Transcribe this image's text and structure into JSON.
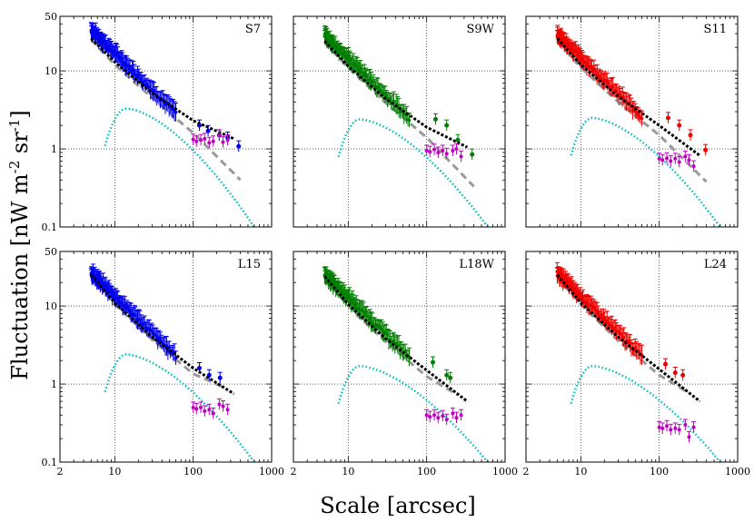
{
  "chart_data": {
    "type": "scatter",
    "xlabel": "Scale [arcsec]",
    "ylabel": "Fluctuation [nW m$^{-2}$ sr$^{-1}$]",
    "xscale": "log",
    "yscale": "log",
    "xlim": [
      2,
      1000
    ],
    "ylim": [
      0.1,
      50
    ],
    "x_tick_labels": [
      {
        "value": 2,
        "label": "2"
      },
      {
        "value": 10,
        "label": "10"
      },
      {
        "value": 100,
        "label": "100"
      },
      {
        "value": 1000,
        "label": "1000"
      }
    ],
    "y_tick_labels": [
      {
        "value": 0.1,
        "label": "0.1"
      },
      {
        "value": 1,
        "label": "1"
      },
      {
        "value": 10,
        "label": "10"
      },
      {
        "value": 50,
        "label": "50"
      }
    ],
    "grid": true,
    "panels": [
      {
        "label": "S7",
        "color": "#0000ee",
        "blue_start": 33,
        "blue_end_small": 2.6,
        "extra_points": [
          [
            120,
            2.0
          ],
          [
            155,
            1.7
          ],
          [
            215,
            1.5
          ],
          [
            275,
            1.4
          ]
        ],
        "last_point": [
          380,
          1.08
        ],
        "black_curve": [
          [
            5,
            26
          ],
          [
            10,
            13
          ],
          [
            30,
            5.2
          ],
          [
            100,
            2.3
          ],
          [
            330,
            1.35
          ]
        ],
        "gray_curve": [
          [
            5,
            25
          ],
          [
            10,
            12
          ],
          [
            30,
            4.5
          ],
          [
            100,
            1.6
          ],
          [
            400,
            0.4
          ]
        ],
        "cyan_peak": 3.3,
        "cyan_end": 0.1,
        "magenta": [
          [
            100,
            1.32
          ],
          [
            110,
            1.25
          ],
          [
            125,
            1.3
          ],
          [
            140,
            1.35
          ],
          [
            160,
            1.2
          ],
          [
            180,
            1.25
          ],
          [
            215,
            1.5
          ],
          [
            240,
            1.22
          ],
          [
            275,
            1.3
          ]
        ]
      },
      {
        "label": "S9W",
        "color": "#008000",
        "blue_start": 28,
        "blue_end_small": 2.2,
        "extra_points": [
          [
            130,
            2.4
          ],
          [
            180,
            2.0
          ],
          [
            250,
            1.3
          ]
        ],
        "last_point": [
          380,
          0.85
        ],
        "black_curve": [
          [
            5,
            24
          ],
          [
            10,
            11.5
          ],
          [
            30,
            4.4
          ],
          [
            100,
            1.9
          ],
          [
            330,
            1.05
          ]
        ],
        "gray_curve": [
          [
            5,
            23
          ],
          [
            10,
            11
          ],
          [
            30,
            3.9
          ],
          [
            100,
            1.4
          ],
          [
            400,
            0.33
          ]
        ],
        "cyan_peak": 2.4,
        "cyan_end": 0.1,
        "magenta": [
          [
            100,
            0.95
          ],
          [
            110,
            0.92
          ],
          [
            125,
            0.98
          ],
          [
            140,
            0.9
          ],
          [
            160,
            0.95
          ],
          [
            180,
            0.87
          ],
          [
            215,
            0.95
          ],
          [
            240,
            1.0
          ],
          [
            275,
            0.8
          ]
        ]
      },
      {
        "label": "S11",
        "color": "#ee0000",
        "blue_start": 29,
        "blue_end_small": 2.3,
        "extra_points": [
          [
            130,
            2.5
          ],
          [
            180,
            2.0
          ],
          [
            250,
            1.5
          ]
        ],
        "last_point": [
          390,
          0.97
        ],
        "black_curve": [
          [
            5,
            26
          ],
          [
            10,
            12
          ],
          [
            30,
            4.7
          ],
          [
            100,
            2.0
          ],
          [
            330,
            0.82
          ]
        ],
        "gray_curve": [
          [
            5,
            24
          ],
          [
            10,
            11
          ],
          [
            30,
            4.0
          ],
          [
            100,
            1.5
          ],
          [
            400,
            0.38
          ]
        ],
        "cyan_peak": 2.5,
        "cyan_end": 0.1,
        "magenta": [
          [
            100,
            0.75
          ],
          [
            110,
            0.72
          ],
          [
            125,
            0.76
          ],
          [
            140,
            0.7
          ],
          [
            160,
            0.75
          ],
          [
            180,
            0.68
          ],
          [
            215,
            0.8
          ],
          [
            240,
            0.72
          ],
          [
            275,
            0.6
          ]
        ]
      },
      {
        "label": "L15",
        "color": "#0000ee",
        "blue_start": 26,
        "blue_end_small": 2.0,
        "extra_points": [
          [
            120,
            1.6
          ],
          [
            160,
            1.3
          ]
        ],
        "last_point": [
          220,
          1.2
        ],
        "black_curve": [
          [
            5,
            25
          ],
          [
            10,
            11
          ],
          [
            30,
            4.0
          ],
          [
            100,
            1.6
          ],
          [
            330,
            0.75
          ]
        ],
        "gray_curve": [
          [
            5,
            24
          ],
          [
            10,
            10.5
          ],
          [
            30,
            3.7
          ],
          [
            100,
            1.35
          ],
          [
            250,
            0.9
          ]
        ],
        "cyan_peak": 2.4,
        "cyan_end": 0.1,
        "magenta": [
          [
            100,
            0.5
          ],
          [
            110,
            0.48
          ],
          [
            125,
            0.5
          ],
          [
            140,
            0.45
          ],
          [
            160,
            0.47
          ],
          [
            180,
            0.42
          ],
          [
            215,
            0.55
          ],
          [
            240,
            0.52
          ],
          [
            275,
            0.47
          ]
        ]
      },
      {
        "label": "L18W",
        "color": "#008000",
        "blue_start": 25,
        "blue_end_small": 1.8,
        "extra_points": [
          [
            120,
            1.9
          ],
          [
            180,
            1.3
          ]
        ],
        "last_point": [
          200,
          1.2
        ],
        "black_curve": [
          [
            5,
            24
          ],
          [
            10,
            10.5
          ],
          [
            30,
            3.8
          ],
          [
            100,
            1.5
          ],
          [
            330,
            0.6
          ]
        ],
        "gray_curve": [
          [
            5,
            23
          ],
          [
            10,
            10
          ],
          [
            30,
            3.5
          ],
          [
            100,
            1.25
          ],
          [
            250,
            0.72
          ]
        ],
        "cyan_peak": 1.7,
        "cyan_end": 0.1,
        "magenta": [
          [
            100,
            0.4
          ],
          [
            110,
            0.38
          ],
          [
            125,
            0.4
          ],
          [
            140,
            0.37
          ],
          [
            160,
            0.39
          ],
          [
            180,
            0.35
          ],
          [
            215,
            0.42
          ],
          [
            240,
            0.37
          ],
          [
            275,
            0.4
          ]
        ]
      },
      {
        "label": "L24",
        "color": "#ee0000",
        "blue_start": 26,
        "blue_end_small": 1.9,
        "extra_points": [
          [
            120,
            1.8
          ],
          [
            160,
            1.4
          ]
        ],
        "last_point": [
          200,
          1.3
        ],
        "black_curve": [
          [
            5,
            25
          ],
          [
            10,
            11
          ],
          [
            30,
            4.0
          ],
          [
            100,
            1.55
          ],
          [
            330,
            0.6
          ]
        ],
        "gray_curve": [
          [
            5,
            24
          ],
          [
            10,
            10.5
          ],
          [
            30,
            3.6
          ],
          [
            100,
            1.3
          ],
          [
            250,
            0.75
          ]
        ],
        "cyan_peak": 1.7,
        "cyan_end": 0.1,
        "magenta": [
          [
            100,
            0.28
          ],
          [
            110,
            0.27
          ],
          [
            125,
            0.29
          ],
          [
            140,
            0.26
          ],
          [
            160,
            0.27
          ],
          [
            180,
            0.26
          ],
          [
            215,
            0.3
          ],
          [
            240,
            0.21
          ],
          [
            275,
            0.28
          ]
        ]
      }
    ]
  }
}
